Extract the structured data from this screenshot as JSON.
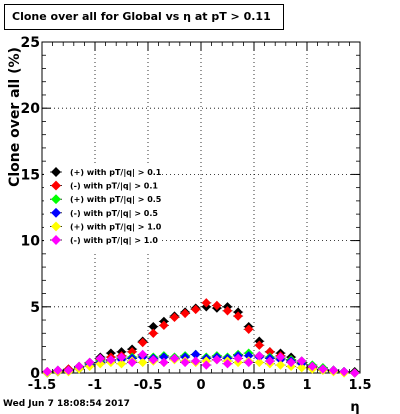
{
  "title": "Clone  over all for Global vs  η at pT > 0.11",
  "footer": "Wed Jun  7 18:08:54 2017",
  "chart_data": {
    "type": "scatter",
    "title": "Clone  over all for Global vs  η at pT > 0.11",
    "xlabel": "η",
    "ylabel": "Clone  over all (%)",
    "xlim": [
      -1.5,
      1.5
    ],
    "ylim": [
      0,
      25
    ],
    "x_ticks": [
      "-1.5",
      "-1",
      "-0.5",
      "0",
      "0.5",
      "1",
      "1.5"
    ],
    "y_ticks": [
      "0",
      "5",
      "10",
      "15",
      "20",
      "25"
    ],
    "grid": true,
    "legend_position": "center-left",
    "series": [
      {
        "name": "(+) with pT/|q| > 0.1",
        "color": "#000000",
        "x": [
          -1.45,
          -1.35,
          -1.25,
          -1.15,
          -1.05,
          -0.95,
          -0.85,
          -0.75,
          -0.65,
          -0.55,
          -0.45,
          -0.35,
          -0.25,
          -0.15,
          -0.05,
          0.05,
          0.15,
          0.25,
          0.35,
          0.45,
          0.55,
          0.65,
          0.75,
          0.85,
          0.95,
          1.05,
          1.15,
          1.25,
          1.35,
          1.45
        ],
        "y": [
          0.1,
          0.2,
          0.3,
          0.5,
          0.8,
          1.2,
          1.5,
          1.6,
          1.8,
          2.4,
          3.5,
          3.9,
          4.3,
          4.6,
          4.9,
          5.0,
          4.9,
          5.0,
          4.6,
          3.5,
          2.4,
          1.6,
          1.5,
          1.2,
          0.9,
          0.5,
          0.3,
          0.2,
          0.1,
          0.1
        ]
      },
      {
        "name": "(-) with pT/|q| > 0.1",
        "color": "#ff0000",
        "x": [
          -1.45,
          -1.35,
          -1.25,
          -1.15,
          -1.05,
          -0.95,
          -0.85,
          -0.75,
          -0.65,
          -0.55,
          -0.45,
          -0.35,
          -0.25,
          -0.15,
          -0.05,
          0.05,
          0.15,
          0.25,
          0.35,
          0.45,
          0.55,
          0.65,
          0.75,
          0.85,
          0.95,
          1.05,
          1.15,
          1.25,
          1.35,
          1.45
        ],
        "y": [
          0.1,
          0.1,
          0.3,
          0.4,
          0.7,
          1.0,
          1.2,
          1.3,
          1.6,
          2.3,
          3.0,
          3.6,
          4.2,
          4.5,
          4.8,
          5.3,
          5.1,
          4.7,
          4.3,
          3.3,
          2.1,
          1.6,
          1.3,
          1.0,
          0.7,
          0.4,
          0.3,
          0.2,
          0.1,
          0.0
        ]
      },
      {
        "name": "(+) with pT/|q| > 0.5",
        "color": "#00ff00",
        "x": [
          -1.45,
          -1.35,
          -1.25,
          -1.15,
          -1.05,
          -0.95,
          -0.85,
          -0.75,
          -0.65,
          -0.55,
          -0.45,
          -0.35,
          -0.25,
          -0.15,
          -0.05,
          0.05,
          0.15,
          0.25,
          0.35,
          0.45,
          0.55,
          0.65,
          0.75,
          0.85,
          0.95,
          1.05,
          1.15,
          1.25,
          1.35,
          1.45
        ],
        "y": [
          0.0,
          0.1,
          0.2,
          0.4,
          0.7,
          0.9,
          1.0,
          1.1,
          1.2,
          1.3,
          1.2,
          1.3,
          1.2,
          1.3,
          1.4,
          1.2,
          1.3,
          1.2,
          1.4,
          1.5,
          1.3,
          1.2,
          1.1,
          1.0,
          0.8,
          0.6,
          0.4,
          0.2,
          0.1,
          0.0
        ]
      },
      {
        "name": "(-) with pT/|q| > 0.5",
        "color": "#0000ff",
        "x": [
          -1.45,
          -1.35,
          -1.25,
          -1.15,
          -1.05,
          -0.95,
          -0.85,
          -0.75,
          -0.65,
          -0.55,
          -0.45,
          -0.35,
          -0.25,
          -0.15,
          -0.05,
          0.05,
          0.15,
          0.25,
          0.35,
          0.45,
          0.55,
          0.65,
          0.75,
          0.85,
          0.95,
          1.05,
          1.15,
          1.25,
          1.35,
          1.45
        ],
        "y": [
          0.0,
          0.1,
          0.2,
          0.3,
          0.6,
          0.8,
          0.9,
          1.0,
          1.1,
          1.2,
          1.1,
          1.2,
          1.1,
          1.2,
          1.4,
          1.1,
          1.2,
          1.1,
          1.3,
          1.3,
          1.2,
          1.1,
          1.0,
          0.9,
          0.7,
          0.5,
          0.3,
          0.2,
          0.1,
          0.0
        ]
      },
      {
        "name": "(+) with pT/|q| > 1.0",
        "color": "#ffff00",
        "x": [
          -1.45,
          -1.35,
          -1.25,
          -1.15,
          -1.05,
          -0.95,
          -0.85,
          -0.75,
          -0.65,
          -0.55,
          -0.45,
          -0.35,
          -0.25,
          -0.15,
          -0.05,
          0.05,
          0.15,
          0.25,
          0.35,
          0.45,
          0.55,
          0.65,
          0.75,
          0.85,
          0.95,
          1.05,
          1.15,
          1.25,
          1.35,
          1.45
        ],
        "y": [
          0.0,
          0.1,
          0.1,
          0.3,
          0.5,
          0.7,
          0.8,
          0.7,
          0.9,
          0.8,
          0.9,
          0.8,
          1.0,
          0.9,
          0.8,
          0.9,
          1.0,
          0.9,
          0.8,
          0.9,
          0.8,
          0.7,
          0.6,
          0.5,
          0.4,
          0.3,
          0.2,
          0.1,
          0.0,
          0.0
        ]
      },
      {
        "name": "(-) with pT/|q| > 1.0",
        "color": "#ff00ff",
        "x": [
          -1.45,
          -1.35,
          -1.25,
          -1.15,
          -1.05,
          -0.95,
          -0.85,
          -0.75,
          -0.65,
          -0.55,
          -0.45,
          -0.35,
          -0.25,
          -0.15,
          -0.05,
          0.05,
          0.15,
          0.25,
          0.35,
          0.45,
          0.55,
          0.65,
          0.75,
          0.85,
          0.95,
          1.05,
          1.15,
          1.25,
          1.35,
          1.45
        ],
        "y": [
          0.1,
          0.2,
          0.2,
          0.5,
          0.8,
          1.1,
          1.0,
          1.2,
          0.8,
          1.4,
          1.0,
          0.8,
          1.1,
          0.8,
          0.9,
          0.6,
          1.0,
          0.7,
          1.1,
          0.8,
          1.3,
          0.9,
          1.2,
          0.8,
          0.9,
          0.5,
          0.3,
          0.2,
          0.1,
          0.0
        ]
      }
    ]
  }
}
